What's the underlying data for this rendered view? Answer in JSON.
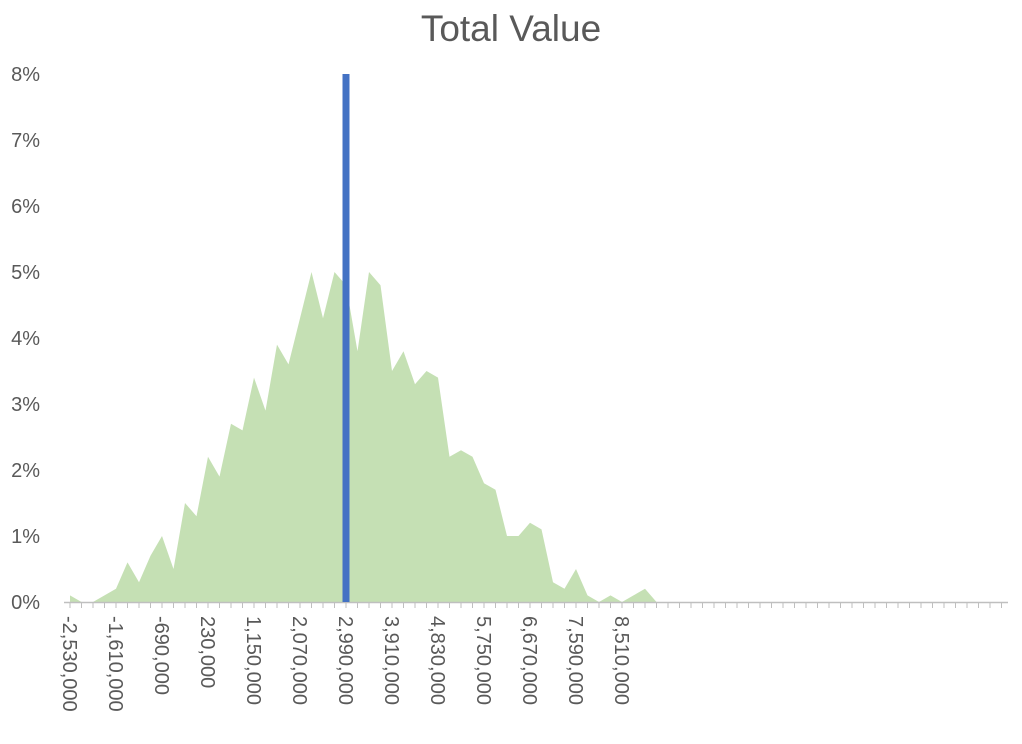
{
  "chart_data": {
    "type": "area",
    "title": "Total Value",
    "xlabel": "",
    "ylabel": "",
    "y_unit": "%",
    "ylim": [
      0,
      8
    ],
    "y_ticks": [
      "0%",
      "1%",
      "2%",
      "3%",
      "4%",
      "5%",
      "6%",
      "7%",
      "8%"
    ],
    "x_tick_labels": [
      "-2,530,000",
      "-1,610,000",
      "-690,000",
      "230,000",
      "1,150,000",
      "2,070,000",
      "2,990,000",
      "3,910,000",
      "4,830,000",
      "5,750,000",
      "6,670,000",
      "7,590,000",
      "8,510,000"
    ],
    "bin_start": -2530000,
    "bin_width": 230000,
    "grid": false,
    "legend": "none",
    "series": [
      {
        "type": "area",
        "color": "#c5e0b4",
        "values": [
          0.1,
          0.0,
          0.0,
          0.1,
          0.2,
          0.6,
          0.3,
          0.7,
          1.0,
          0.5,
          1.5,
          1.3,
          2.2,
          1.9,
          2.7,
          2.6,
          3.4,
          2.9,
          3.9,
          3.6,
          4.3,
          5.0,
          4.3,
          5.0,
          4.8,
          3.8,
          5.0,
          4.8,
          3.5,
          3.8,
          3.3,
          3.5,
          3.4,
          2.2,
          2.3,
          2.2,
          1.8,
          1.7,
          1.0,
          1.0,
          1.2,
          1.1,
          0.3,
          0.2,
          0.5,
          0.1,
          0.0,
          0.1,
          0.0,
          0.1,
          0.2,
          0.0
        ]
      }
    ],
    "marker_line": {
      "x": 2990000,
      "height": 8,
      "color": "#4472c4"
    }
  }
}
